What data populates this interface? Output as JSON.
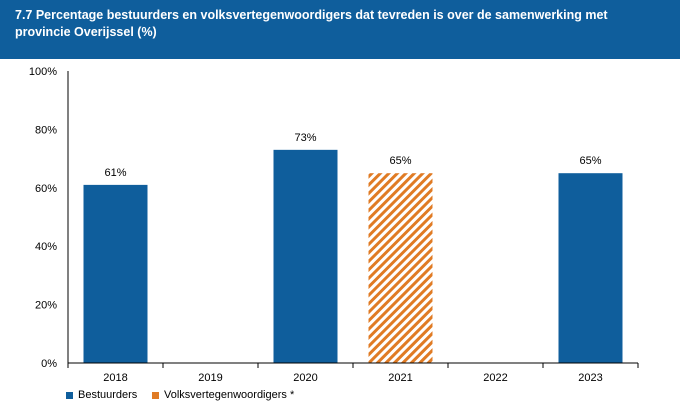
{
  "chart_data": {
    "type": "bar",
    "title": "7.7 Percentage bestuurders en volksvertegenwoordigers dat tevreden is over de samenwerking met provincie Overijssel (%)",
    "categories": [
      "2018",
      "2019",
      "2020",
      "2021",
      "2022",
      "2023"
    ],
    "series": [
      {
        "name": "Bestuurders",
        "values": [
          61,
          null,
          73,
          null,
          null,
          65
        ],
        "color": "#0f5e9c",
        "pattern": "solid"
      },
      {
        "name": "Volksvertegenwoordigers *",
        "values": [
          null,
          null,
          null,
          65,
          null,
          null
        ],
        "color": "#e07b24",
        "pattern": "diagonal-stripes"
      }
    ],
    "data_labels": [
      "61%",
      null,
      "73%",
      "65%",
      null,
      "65%"
    ],
    "ylim": [
      0,
      100
    ],
    "yticks": [
      0,
      20,
      40,
      60,
      80,
      100
    ],
    "ytick_labels": [
      "0%",
      "20%",
      "40%",
      "60%",
      "80%",
      "100%"
    ],
    "grid": false,
    "legend_position": "bottom-left"
  }
}
